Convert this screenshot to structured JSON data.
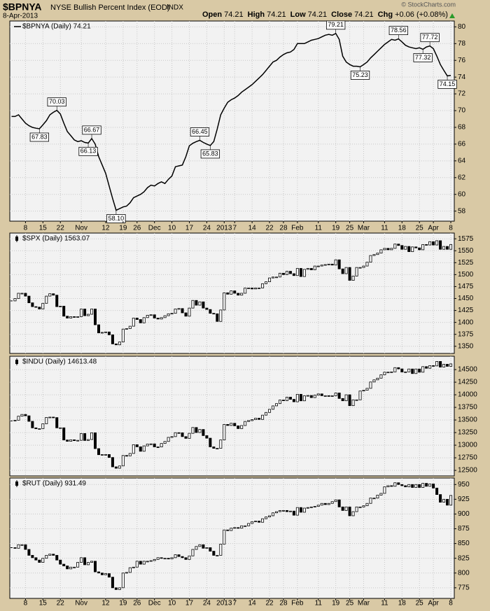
{
  "header": {
    "symbol": "$BPNYA",
    "name": "NYSE Bullish Percent Index (EOD)",
    "exchange": "INDX",
    "date": "8-Apr-2013",
    "credit": "© StockCharts.com",
    "quote": [
      {
        "label": "Open",
        "value": "74.21"
      },
      {
        "label": "High",
        "value": "74.21"
      },
      {
        "label": "Low",
        "value": "74.21"
      },
      {
        "label": "Close",
        "value": "74.21"
      },
      {
        "label": "Chg",
        "value": "+0.06 (+0.08%)"
      }
    ]
  },
  "chart_data": [
    {
      "type": "line",
      "title": "$BPNYA (Daily) 74.21",
      "color": "#000000",
      "grid": true,
      "xlim": [
        -0.5,
        127
      ],
      "xticks": [
        {
          "value": 4,
          "label": "8"
        },
        {
          "value": 9,
          "label": "15"
        },
        {
          "value": 14,
          "label": "22"
        },
        {
          "value": 20,
          "label": "Nov"
        },
        {
          "value": 27,
          "label": "12"
        },
        {
          "value": 32,
          "label": "19"
        },
        {
          "value": 36,
          "label": "26"
        },
        {
          "value": 41,
          "label": "Dec"
        },
        {
          "value": 46,
          "label": "10"
        },
        {
          "value": 51,
          "label": "17"
        },
        {
          "value": 56,
          "label": "24"
        },
        {
          "value": 61,
          "label": "2013"
        },
        {
          "value": 64,
          "label": "7"
        },
        {
          "value": 69,
          "label": "14"
        },
        {
          "value": 74,
          "label": "22"
        },
        {
          "value": 78,
          "label": "28"
        },
        {
          "value": 82,
          "label": "Feb"
        },
        {
          "value": 88,
          "label": "11"
        },
        {
          "value": 93,
          "label": "19"
        },
        {
          "value": 97,
          "label": "25"
        },
        {
          "value": 101,
          "label": "Mar"
        },
        {
          "value": 107,
          "label": "11"
        },
        {
          "value": 112,
          "label": "18"
        },
        {
          "value": 117,
          "label": "25"
        },
        {
          "value": 121,
          "label": "Apr"
        },
        {
          "value": 126,
          "label": "8"
        }
      ],
      "ylim": [
        56.8,
        80.7
      ],
      "yticks": [
        58,
        60,
        62,
        64,
        66,
        68,
        70,
        72,
        74,
        76,
        78,
        80
      ],
      "values": [
        69.3,
        69.3,
        69.5,
        69.0,
        68.5,
        68.2,
        68.0,
        67.9,
        67.83,
        68.3,
        68.8,
        69.5,
        69.8,
        70.03,
        69.6,
        68.5,
        67.5,
        67.0,
        66.5,
        66.3,
        66.4,
        66.2,
        66.13,
        66.67,
        66.0,
        64.5,
        63.5,
        62.5,
        61.0,
        59.5,
        58.1,
        58.3,
        58.5,
        58.6,
        59.0,
        59.6,
        59.8,
        60.0,
        60.3,
        60.8,
        61.1,
        61.0,
        61.3,
        61.5,
        61.3,
        61.8,
        62.2,
        63.3,
        63.4,
        63.5,
        64.5,
        65.8,
        66.1,
        66.3,
        66.45,
        66.2,
        66.0,
        65.83,
        66.3,
        67.8,
        69.5,
        70.3,
        71.0,
        71.3,
        71.5,
        71.8,
        72.2,
        72.5,
        72.8,
        73.1,
        73.5,
        73.9,
        74.3,
        74.8,
        75.3,
        75.8,
        76.0,
        76.4,
        76.7,
        76.9,
        77.0,
        77.3,
        78.0,
        78.0,
        78.0,
        78.2,
        78.4,
        78.5,
        78.6,
        78.8,
        79.0,
        79.1,
        79.0,
        79.21,
        78.5,
        76.5,
        75.8,
        75.5,
        75.3,
        75.3,
        75.23,
        75.5,
        75.8,
        76.3,
        76.7,
        77.1,
        77.5,
        77.9,
        78.2,
        78.5,
        78.4,
        78.56,
        78.2,
        77.8,
        77.6,
        77.5,
        77.4,
        77.5,
        77.32,
        77.6,
        77.72,
        77.4,
        76.5,
        75.5,
        74.8,
        74.15,
        74.21
      ],
      "value_labels": [
        null,
        null,
        null,
        null,
        null,
        null,
        null,
        null,
        "67.83",
        null,
        null,
        null,
        null,
        "70.03",
        null,
        null,
        null,
        null,
        null,
        null,
        null,
        null,
        "66.13",
        "66.67",
        null,
        null,
        null,
        null,
        null,
        null,
        "58.10",
        null,
        null,
        null,
        null,
        null,
        null,
        null,
        null,
        null,
        null,
        null,
        null,
        null,
        null,
        null,
        null,
        null,
        null,
        null,
        null,
        null,
        null,
        null,
        "66.45",
        null,
        null,
        "65.83",
        null,
        null,
        null,
        null,
        null,
        null,
        null,
        null,
        null,
        null,
        null,
        null,
        null,
        null,
        null,
        null,
        null,
        null,
        null,
        null,
        null,
        null,
        null,
        null,
        null,
        null,
        null,
        null,
        null,
        null,
        null,
        null,
        null,
        null,
        null,
        "79.21",
        null,
        null,
        null,
        null,
        null,
        null,
        "75.23",
        null,
        null,
        null,
        null,
        null,
        null,
        null,
        null,
        null,
        null,
        "78.56",
        null,
        null,
        null,
        null,
        null,
        null,
        "77.32",
        null,
        "77.72",
        null,
        null,
        null,
        null,
        "74.15",
        null
      ]
    },
    {
      "type": "candlestick",
      "title": "$SPX (Daily) 1563.07",
      "color": "#000000",
      "grid": true,
      "ylim": [
        1335,
        1587
      ],
      "yticks": [
        1350,
        1375,
        1400,
        1425,
        1450,
        1475,
        1500,
        1525,
        1550,
        1575
      ],
      "values": [
        1445,
        1450,
        1461,
        1461,
        1455,
        1441,
        1433,
        1432,
        1428,
        1440,
        1455,
        1460,
        1457,
        1433,
        1434,
        1413,
        1409,
        1412,
        1411,
        1412,
        1428,
        1414,
        1417,
        1428,
        1395,
        1378,
        1379,
        1380,
        1374,
        1355,
        1353,
        1359,
        1386,
        1387,
        1392,
        1409,
        1406,
        1399,
        1410,
        1415,
        1416,
        1409,
        1407,
        1410,
        1414,
        1418,
        1419,
        1428,
        1429,
        1420,
        1413,
        1430,
        1446,
        1436,
        1443,
        1430,
        1427,
        1419,
        1418,
        1402,
        1426,
        1462,
        1459,
        1466,
        1461,
        1457,
        1461,
        1472,
        1472,
        1470,
        1472,
        1472,
        1481,
        1485,
        1493,
        1495,
        1495,
        1503,
        1500,
        1507,
        1502,
        1498,
        1513,
        1496,
        1511,
        1513,
        1510,
        1518,
        1518,
        1520,
        1521,
        1522,
        1520,
        1531,
        1512,
        1502,
        1515,
        1488,
        1497,
        1515,
        1515,
        1518,
        1526,
        1540,
        1542,
        1545,
        1552,
        1555,
        1552,
        1555,
        1564,
        1561,
        1553,
        1559,
        1548,
        1558,
        1556,
        1552,
        1563,
        1562,
        1569,
        1562,
        1571,
        1553,
        1559,
        1553,
        1563.07
      ]
    },
    {
      "type": "candlestick",
      "title": "$INDU (Daily) 14613.48",
      "color": "#000000",
      "grid": true,
      "ylim": [
        12390,
        14765
      ],
      "yticks": [
        12500,
        12750,
        13000,
        13250,
        13500,
        13750,
        14000,
        14250,
        14500
      ],
      "values": [
        13482,
        13495,
        13575,
        13610,
        13583,
        13473,
        13344,
        13326,
        13328,
        13425,
        13551,
        13557,
        13548,
        13344,
        13345,
        13103,
        13077,
        13107,
        13090,
        13096,
        13232,
        13093,
        13112,
        13246,
        12932,
        12811,
        12815,
        12815,
        12756,
        12570,
        12542,
        12588,
        12796,
        12788,
        12836,
        13010,
        12968,
        12879,
        12986,
        13022,
        13026,
        12966,
        12965,
        13034,
        13074,
        13155,
        13170,
        13248,
        13246,
        13170,
        13135,
        13235,
        13351,
        13251,
        13312,
        13190,
        13139,
        12967,
        12938,
        12938,
        13104,
        13412,
        13391,
        13435,
        13384,
        13329,
        13390,
        13471,
        13488,
        13507,
        13535,
        13511,
        13596,
        13650,
        13712,
        13780,
        13825,
        13896,
        13882,
        13954,
        13910,
        13861,
        14010,
        13880,
        13979,
        13986,
        13944,
        13993,
        14018,
        13982,
        13982,
        13973,
        13981,
        14036,
        13927,
        13881,
        14000,
        13784,
        13900,
        13900,
        14075,
        14090,
        14128,
        14254,
        14296,
        14330,
        14397,
        14448,
        14450,
        14455,
        14539,
        14514,
        14452,
        14455,
        14512,
        14421,
        14512,
        14448,
        14559,
        14526,
        14579,
        14573,
        14662,
        14550,
        14606,
        14565,
        14613.48
      ]
    },
    {
      "type": "candlestick",
      "title": "$RUT (Daily) 931.49",
      "color": "#000000",
      "grid": true,
      "xticks": [
        {
          "value": 4,
          "label": "8"
        },
        {
          "value": 9,
          "label": "15"
        },
        {
          "value": 14,
          "label": "22"
        },
        {
          "value": 20,
          "label": "Nov"
        },
        {
          "value": 27,
          "label": "12"
        },
        {
          "value": 32,
          "label": "19"
        },
        {
          "value": 36,
          "label": "26"
        },
        {
          "value": 41,
          "label": "Dec"
        },
        {
          "value": 46,
          "label": "10"
        },
        {
          "value": 51,
          "label": "17"
        },
        {
          "value": 56,
          "label": "24"
        },
        {
          "value": 61,
          "label": "2013"
        },
        {
          "value": 64,
          "label": "7"
        },
        {
          "value": 69,
          "label": "14"
        },
        {
          "value": 74,
          "label": "22"
        },
        {
          "value": 78,
          "label": "28"
        },
        {
          "value": 82,
          "label": "Feb"
        },
        {
          "value": 88,
          "label": "11"
        },
        {
          "value": 93,
          "label": "19"
        },
        {
          "value": 97,
          "label": "25"
        },
        {
          "value": 101,
          "label": "Mar"
        },
        {
          "value": 107,
          "label": "11"
        },
        {
          "value": 112,
          "label": "18"
        },
        {
          "value": 117,
          "label": "25"
        },
        {
          "value": 121,
          "label": "Apr"
        },
        {
          "value": 126,
          "label": "8"
        }
      ],
      "ylim": [
        757,
        961
      ],
      "yticks": [
        775,
        800,
        825,
        850,
        875,
        900,
        925,
        950
      ],
      "values": [
        843,
        842,
        848,
        848,
        840,
        830,
        826,
        822,
        818,
        825,
        830,
        832,
        830,
        822,
        815,
        812,
        807,
        810,
        810,
        818,
        826,
        814,
        818,
        820,
        802,
        800,
        797,
        799,
        793,
        775,
        772,
        775,
        800,
        801,
        809,
        810,
        820,
        815,
        820,
        820,
        821,
        823,
        826,
        825,
        825,
        824,
        826,
        831,
        828,
        826,
        823,
        829,
        840,
        845,
        848,
        842,
        843,
        837,
        830,
        830,
        849,
        873,
        872,
        876,
        877,
        876,
        880,
        880,
        884,
        887,
        888,
        886,
        892,
        895,
        897,
        902,
        904,
        906,
        906,
        904,
        905,
        898,
        911,
        903,
        910,
        911,
        912,
        913,
        915,
        918,
        916,
        918,
        921,
        924,
        912,
        906,
        912,
        897,
        904,
        912,
        912,
        914,
        918,
        927,
        927,
        932,
        935,
        946,
        948,
        947,
        953,
        950,
        948,
        946,
        950,
        945,
        950,
        945,
        952,
        947,
        951,
        944,
        933,
        920,
        925,
        915,
        931.49
      ]
    }
  ]
}
